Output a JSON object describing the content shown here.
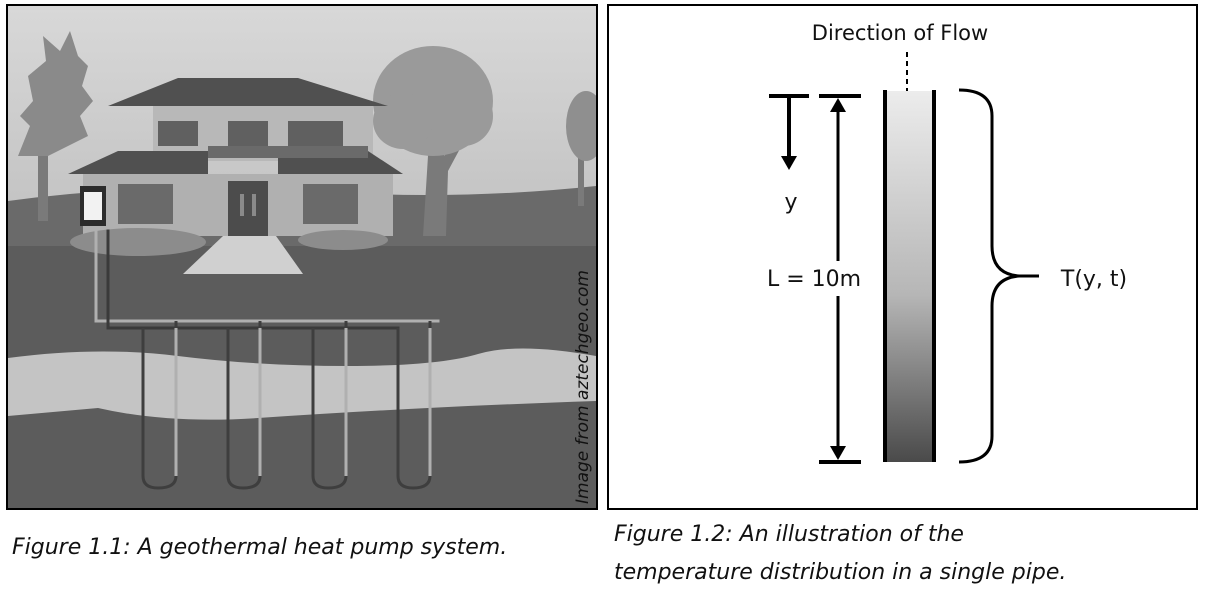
{
  "figure_left": {
    "watermark": "Image from aztechgeo.com",
    "caption": "Figure 1.1: A geothermal heat pump system."
  },
  "figure_right": {
    "flow_label": "Direction of Flow",
    "y_label": "y",
    "length_label": "L = 10m",
    "temperature_label": "T(y, t)",
    "caption_line1": "Figure 1.2: An illustration of the",
    "caption_line2": "temperature distribution in a single pipe."
  },
  "colors": {
    "sky": "#cfcfcf",
    "ground": "#5e5e5e",
    "band": "#c4c4c4",
    "pipe_dark": "#3e3e3e",
    "pipe_light": "#b0b0b0",
    "gradient_top": "#e9e9e9",
    "gradient_bottom": "#4a4a4a"
  }
}
